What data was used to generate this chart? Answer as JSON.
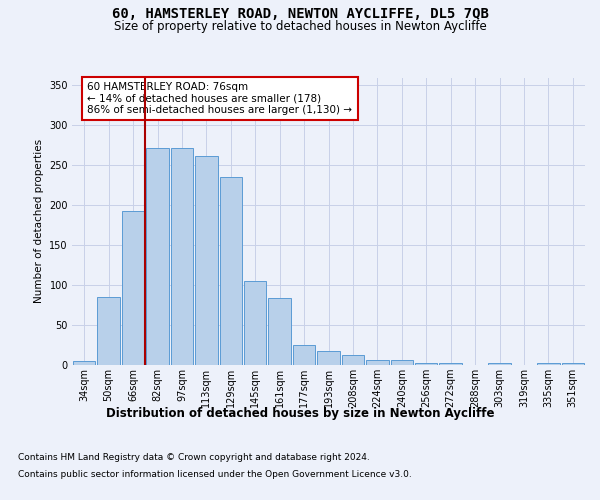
{
  "title": "60, HAMSTERLEY ROAD, NEWTON AYCLIFFE, DL5 7QB",
  "subtitle": "Size of property relative to detached houses in Newton Aycliffe",
  "xlabel": "Distribution of detached houses by size in Newton Aycliffe",
  "ylabel": "Number of detached properties",
  "categories": [
    "34sqm",
    "50sqm",
    "66sqm",
    "82sqm",
    "97sqm",
    "113sqm",
    "129sqm",
    "145sqm",
    "161sqm",
    "177sqm",
    "193sqm",
    "208sqm",
    "224sqm",
    "240sqm",
    "256sqm",
    "272sqm",
    "288sqm",
    "303sqm",
    "319sqm",
    "335sqm",
    "351sqm"
  ],
  "values": [
    5,
    85,
    193,
    272,
    272,
    262,
    236,
    105,
    84,
    25,
    17,
    13,
    6,
    6,
    3,
    3,
    0,
    3,
    0,
    3,
    3
  ],
  "bar_color": "#b8d0ea",
  "bar_edge_color": "#5b9bd5",
  "background_color": "#edf1fa",
  "grid_color": "#c8d0e8",
  "vline_color": "#aa0000",
  "vline_pos": 2.5,
  "annotation_line1": "60 HAMSTERLEY ROAD: 76sqm",
  "annotation_line2": "← 14% of detached houses are smaller (178)",
  "annotation_line3": "86% of semi-detached houses are larger (1,130) →",
  "annotation_box_facecolor": "#ffffff",
  "annotation_box_edgecolor": "#cc0000",
  "footnote1": "Contains HM Land Registry data © Crown copyright and database right 2024.",
  "footnote2": "Contains public sector information licensed under the Open Government Licence v3.0.",
  "yticks": [
    0,
    50,
    100,
    150,
    200,
    250,
    300,
    350
  ],
  "ylim_max": 360,
  "title_fontsize": 10,
  "subtitle_fontsize": 8.5,
  "xlabel_fontsize": 8.5,
  "ylabel_fontsize": 7.5,
  "tick_fontsize": 7,
  "annotation_fontsize": 7.5,
  "footnote_fontsize": 6.5
}
